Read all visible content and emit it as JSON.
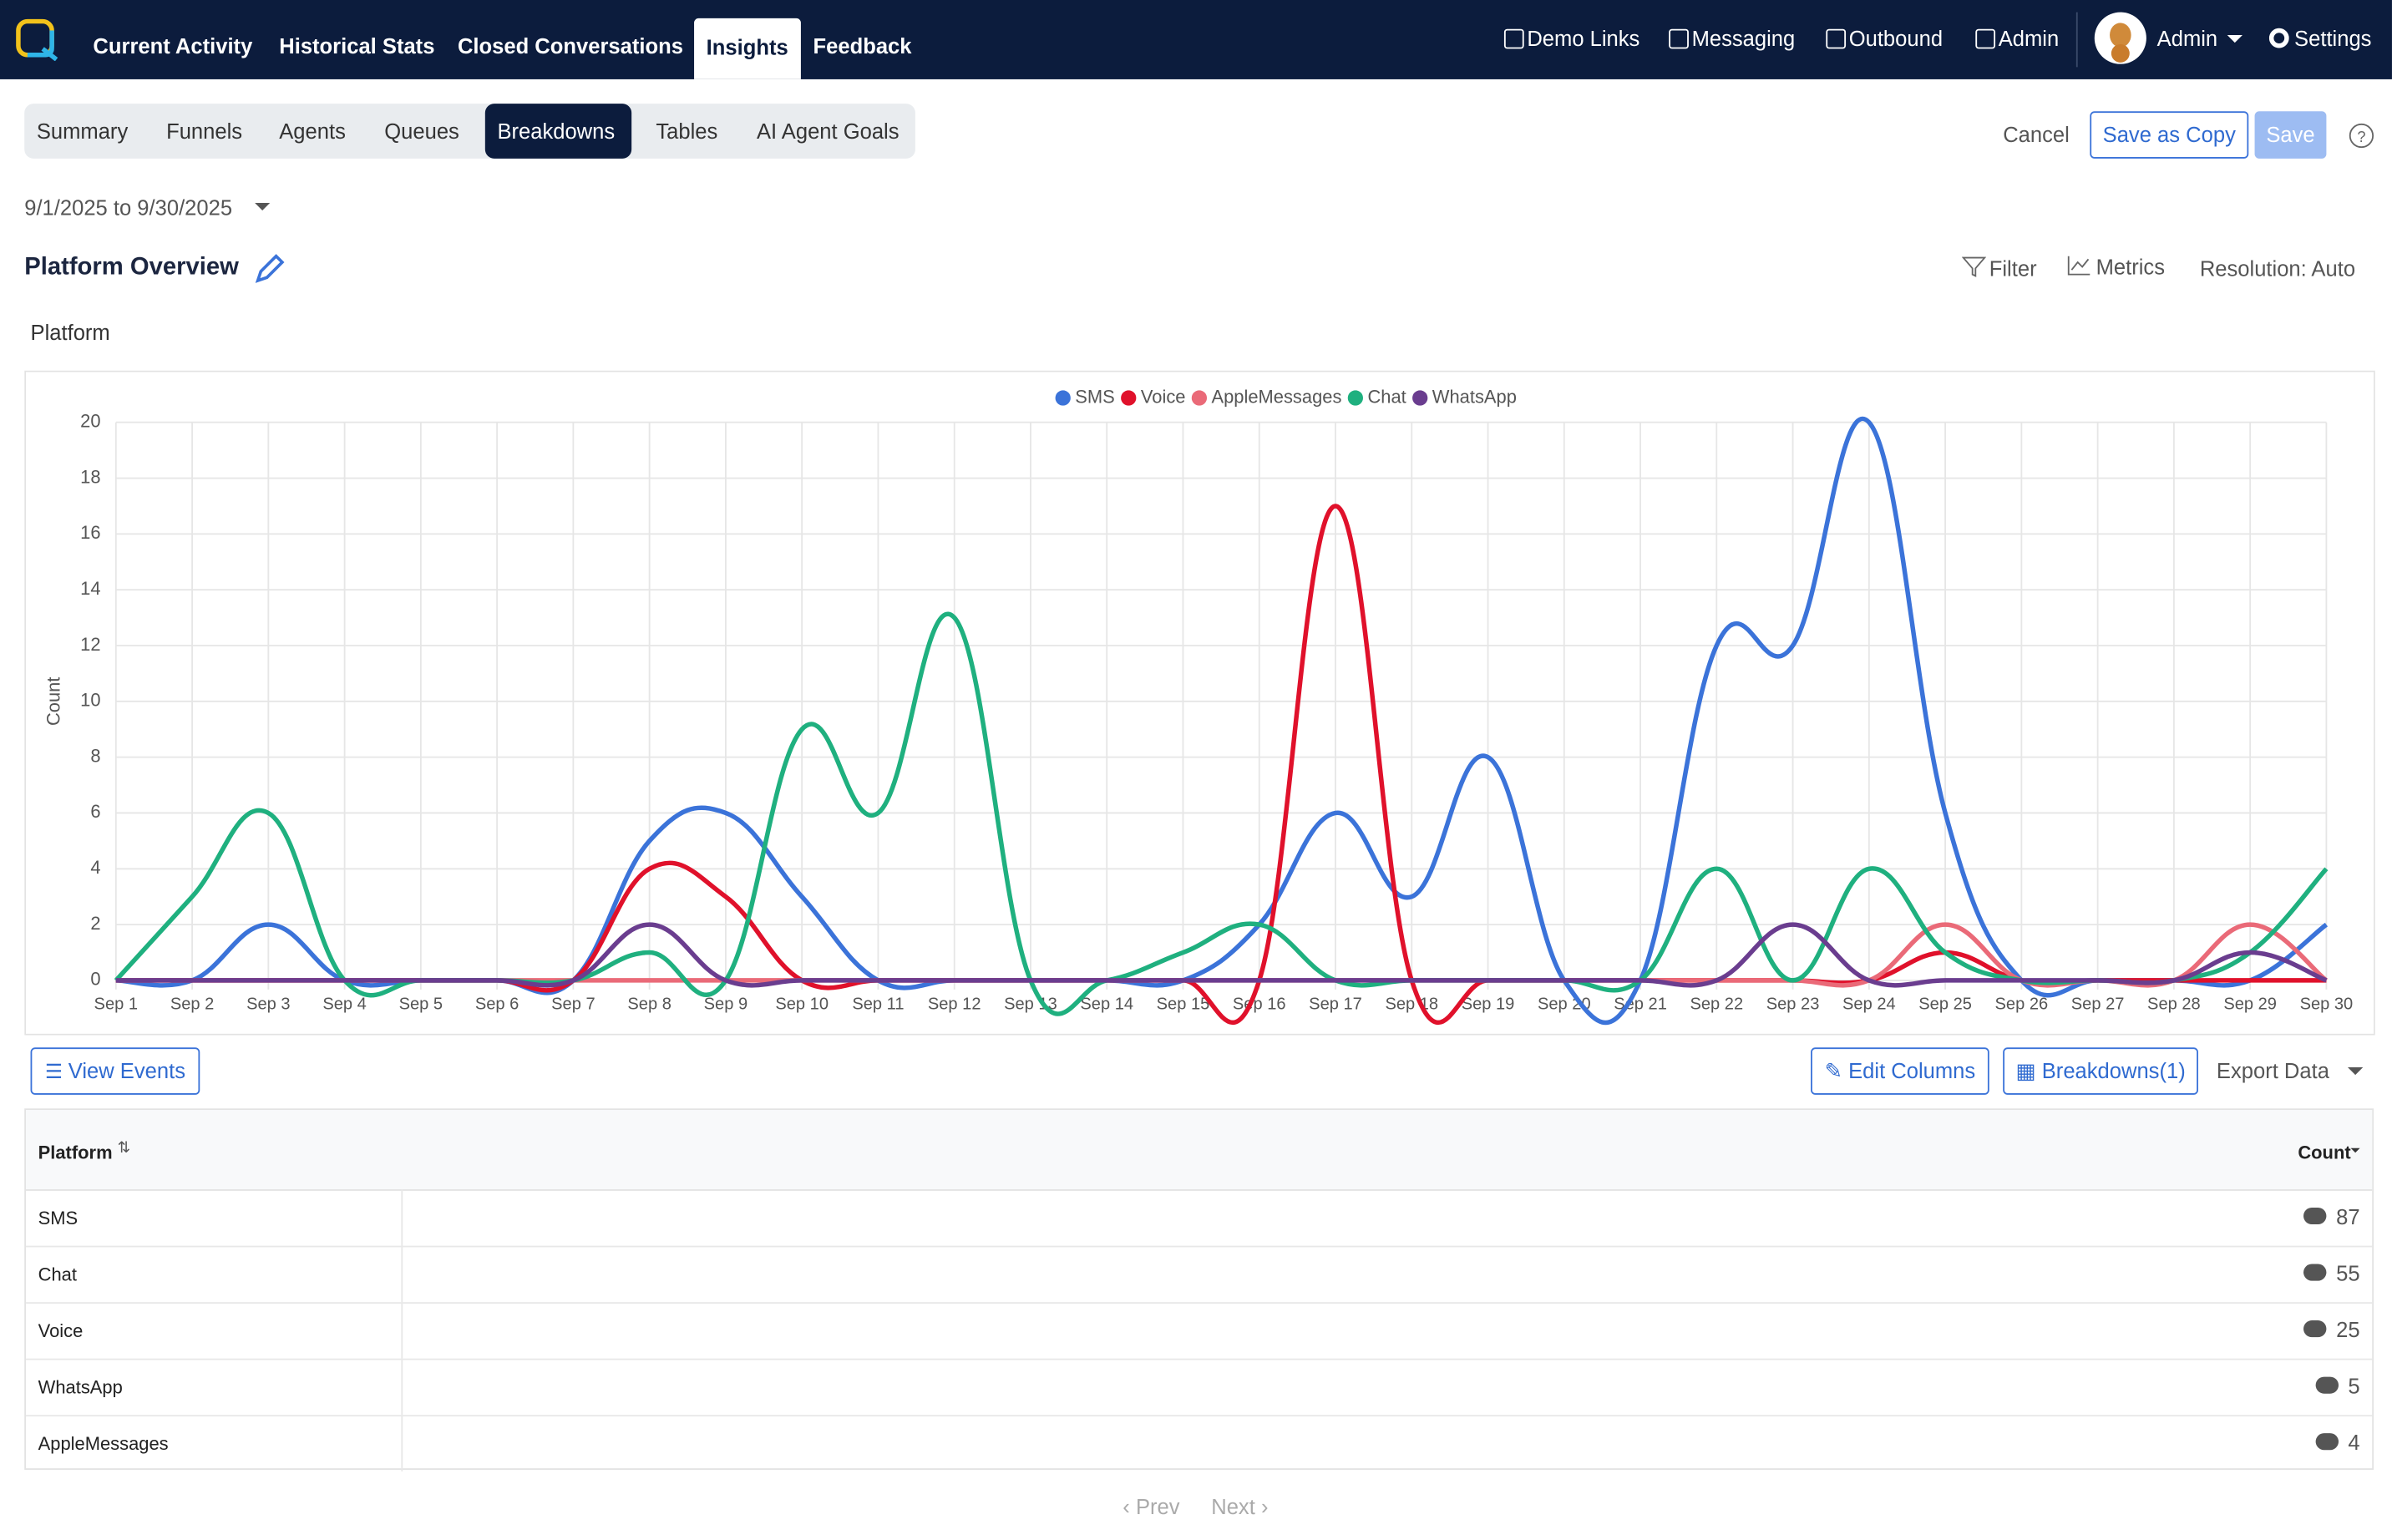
{
  "nav": {
    "left": [
      "Current Activity",
      "Historical Stats",
      "Closed Conversations",
      "Insights",
      "Feedback"
    ],
    "right": [
      "Demo Links",
      "Messaging",
      "Outbound",
      "Admin"
    ],
    "user": "Admin",
    "settings": "Settings"
  },
  "tabs": [
    "Summary",
    "Funnels",
    "Agents",
    "Queues",
    "Breakdowns",
    "Tables",
    "AI Agent Goals"
  ],
  "actions": {
    "cancel": "Cancel",
    "save_copy": "Save as Copy",
    "save": "Save"
  },
  "date_range": "9/1/2025 to 9/30/2025",
  "report": {
    "title": "Platform Overview",
    "filter": "Filter",
    "metrics": "Metrics",
    "resolution": "Resolution: Auto",
    "section": "Platform"
  },
  "chart_data": {
    "type": "line",
    "y_label": "Count",
    "categories": [
      "Sep 1",
      "Sep 2",
      "Sep 3",
      "Sep 4",
      "Sep 5",
      "Sep 6",
      "Sep 7",
      "Sep 8",
      "Sep 9",
      "Sep 10",
      "Sep 11",
      "Sep 12",
      "Sep 13",
      "Sep 14",
      "Sep 15",
      "Sep 16",
      "Sep 17",
      "Sep 18",
      "Sep 19",
      "Sep 20",
      "Sep 21",
      "Sep 22",
      "Sep 23",
      "Sep 24",
      "Sep 25",
      "Sep 26",
      "Sep 27",
      "Sep 28",
      "Sep 29",
      "Sep 30"
    ],
    "series": [
      {
        "name": "SMS",
        "color": "#3b73d9",
        "values": [
          0,
          0,
          2,
          0,
          0,
          0,
          0,
          5,
          6,
          3,
          0,
          0,
          0,
          0,
          0,
          2,
          6,
          3,
          8,
          0,
          0,
          12,
          12,
          20,
          6,
          0,
          0,
          0,
          0,
          2
        ]
      },
      {
        "name": "Voice",
        "color": "#e0112b",
        "values": [
          0,
          0,
          0,
          0,
          0,
          0,
          0,
          4,
          3,
          0,
          0,
          0,
          0,
          0,
          0,
          0,
          17,
          0,
          0,
          0,
          0,
          0,
          0,
          0,
          1,
          0,
          0,
          0,
          0,
          0
        ]
      },
      {
        "name": "AppleMessages",
        "color": "#ea6a78",
        "values": [
          0,
          0,
          0,
          0,
          0,
          0,
          0,
          0,
          0,
          0,
          0,
          0,
          0,
          0,
          0,
          0,
          0,
          0,
          0,
          0,
          0,
          0,
          0,
          0,
          2,
          0,
          0,
          0,
          2,
          0
        ]
      },
      {
        "name": "Chat",
        "color": "#1fb07f",
        "values": [
          0,
          3,
          6,
          0,
          0,
          0,
          0,
          1,
          0,
          9,
          6,
          13,
          0,
          0,
          1,
          2,
          0,
          0,
          0,
          0,
          0,
          4,
          0,
          4,
          1,
          0,
          0,
          0,
          1,
          4
        ]
      },
      {
        "name": "WhatsApp",
        "color": "#6a3d8f",
        "values": [
          0,
          0,
          0,
          0,
          0,
          0,
          0,
          2,
          0,
          0,
          0,
          0,
          0,
          0,
          0,
          0,
          0,
          0,
          0,
          0,
          0,
          0,
          2,
          0,
          0,
          0,
          0,
          0,
          1,
          0
        ]
      }
    ],
    "ylim": [
      0,
      20
    ],
    "yticks": [
      0,
      2,
      4,
      6,
      8,
      10,
      12,
      14,
      16,
      18,
      20
    ],
    "grid": true,
    "legend": "top"
  },
  "table_tools": {
    "view_events": "View Events",
    "edit_columns": "Edit Columns",
    "breakdowns": "Breakdowns(1)",
    "export": "Export Data"
  },
  "table": {
    "columns": [
      "Platform",
      "Count"
    ],
    "rows": [
      [
        "SMS",
        87
      ],
      [
        "Chat",
        55
      ],
      [
        "Voice",
        25
      ],
      [
        "WhatsApp",
        5
      ],
      [
        "AppleMessages",
        4
      ]
    ]
  },
  "pager": {
    "prev": "Prev",
    "next": "Next"
  }
}
